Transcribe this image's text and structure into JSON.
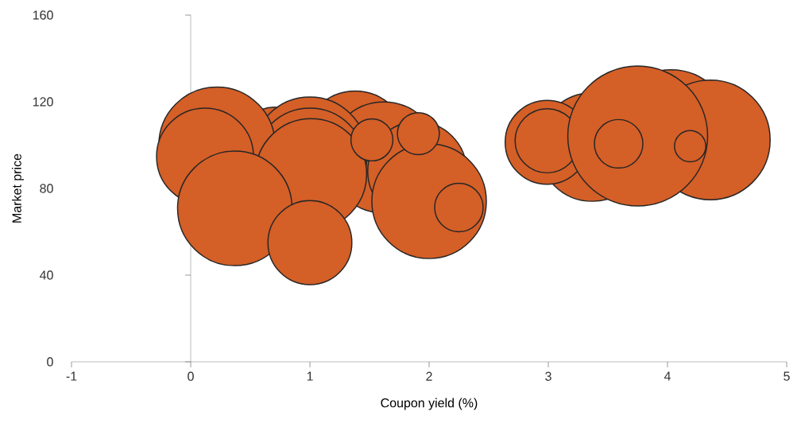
{
  "chart_data": {
    "type": "bubble",
    "xlabel": "Coupon yield (%)",
    "ylabel": "Market price",
    "x": [
      1.38,
      1.62,
      1.9,
      0.7,
      1.0,
      1.0,
      0.22,
      0.12,
      1.01,
      0.37,
      1.0,
      2.0,
      2.25,
      1.52,
      1.91,
      3.37,
      4.03,
      4.36,
      2.99,
      2.99,
      3.75,
      3.59,
      4.19
    ],
    "values": [
      101,
      94.3,
      88,
      102.7,
      95.8,
      91.4,
      100,
      94.7,
      86.6,
      70.8,
      55,
      74.1,
      71.2,
      102.4,
      105.3,
      99.1,
      107.2,
      102.4,
      101.3,
      102,
      104.2,
      100.6,
      99.5
    ],
    "sizes": [
      0.55,
      0.63,
      0.5,
      0.21,
      0.67,
      0.63,
      0.69,
      0.48,
      0.63,
      0.67,
      0.36,
      0.67,
      0.12,
      0.09,
      0.09,
      0.6,
      0.73,
      0.73,
      0.36,
      0.21,
      1,
      0.12,
      0.05
    ],
    "color": "#d45f27",
    "xlim": [
      -1,
      5
    ],
    "ylim": [
      0,
      160
    ],
    "xticks": [
      -1,
      0,
      1,
      2,
      3,
      4,
      5
    ],
    "yticks": [
      0,
      40,
      80,
      120,
      160
    ]
  }
}
